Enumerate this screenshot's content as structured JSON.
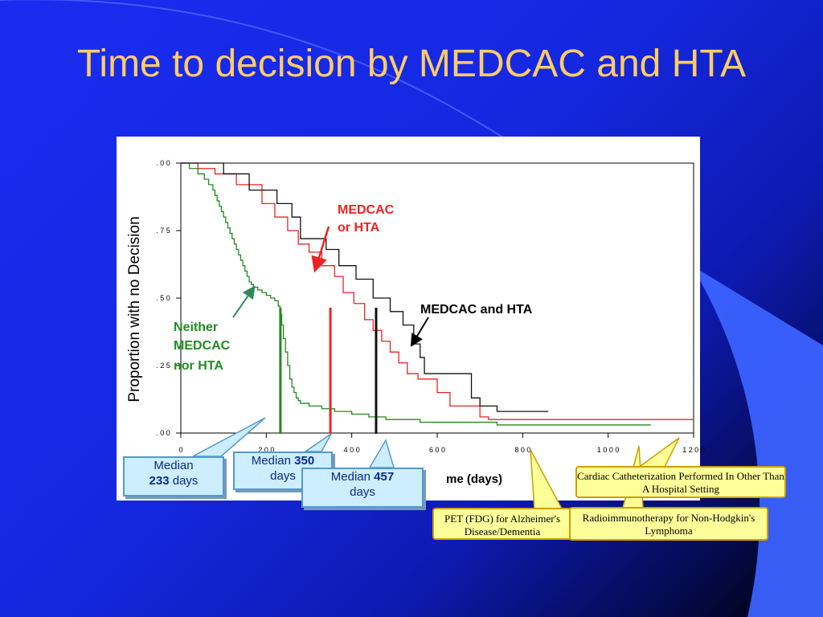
{
  "slide": {
    "title": "Time to decision by MEDCAC and HTA"
  },
  "chart_data": {
    "type": "line",
    "subtype": "step",
    "ylabel": "Proportion with no Decision",
    "xlabel": "me (days)",
    "xlim": [
      0,
      1200
    ],
    "ylim": [
      0,
      1
    ],
    "x_ticks": [
      0,
      200,
      400,
      600,
      800,
      1000,
      1200
    ],
    "x_tick_labels": [
      "0",
      "200",
      "400",
      "600",
      "800",
      "1000",
      "1200"
    ],
    "y_ticks": [
      0,
      0.25,
      0.5,
      0.75,
      1.0
    ],
    "y_tick_labels": [
      ". 0 0",
      ". 2 5",
      ". 5 0",
      ". 7 5",
      ". 0 0"
    ],
    "series": [
      {
        "name": "Neither MEDCAC nor HTA",
        "color": "#228b22",
        "x": [
          0,
          20,
          40,
          55,
          65,
          75,
          80,
          85,
          90,
          95,
          100,
          105,
          110,
          115,
          120,
          125,
          130,
          135,
          140,
          145,
          150,
          155,
          160,
          165,
          170,
          180,
          190,
          200,
          210,
          220,
          228,
          232,
          236,
          240,
          245,
          250,
          255,
          260,
          265,
          270,
          275,
          280,
          300,
          330,
          360,
          400,
          440,
          480,
          560,
          740,
          1100
        ],
        "y": [
          1.0,
          0.98,
          0.96,
          0.94,
          0.92,
          0.9,
          0.88,
          0.86,
          0.84,
          0.82,
          0.8,
          0.78,
          0.76,
          0.74,
          0.72,
          0.7,
          0.68,
          0.66,
          0.64,
          0.62,
          0.6,
          0.58,
          0.56,
          0.55,
          0.54,
          0.53,
          0.52,
          0.51,
          0.5,
          0.49,
          0.47,
          0.44,
          0.4,
          0.35,
          0.3,
          0.25,
          0.2,
          0.17,
          0.15,
          0.13,
          0.12,
          0.11,
          0.1,
          0.09,
          0.08,
          0.07,
          0.06,
          0.05,
          0.04,
          0.03,
          0.03
        ]
      },
      {
        "name": "MEDCAC or HTA",
        "color": "#ee2222",
        "x": [
          0,
          40,
          80,
          130,
          190,
          220,
          250,
          275,
          300,
          330,
          360,
          380,
          405,
          430,
          450,
          470,
          490,
          510,
          530,
          555,
          600,
          630,
          700,
          720,
          1200
        ],
        "y": [
          1.0,
          0.98,
          0.96,
          0.92,
          0.85,
          0.8,
          0.75,
          0.7,
          0.67,
          0.62,
          0.58,
          0.52,
          0.48,
          0.42,
          0.38,
          0.34,
          0.3,
          0.26,
          0.22,
          0.2,
          0.15,
          0.1,
          0.06,
          0.05,
          0.05
        ]
      },
      {
        "name": "MEDCAC and HTA",
        "color": "#111111",
        "x": [
          0,
          100,
          160,
          225,
          260,
          280,
          340,
          370,
          410,
          450,
          490,
          520,
          545,
          560,
          570,
          600,
          680,
          700,
          740,
          860
        ],
        "y": [
          1.0,
          0.96,
          0.9,
          0.85,
          0.8,
          0.72,
          0.68,
          0.62,
          0.57,
          0.5,
          0.45,
          0.4,
          0.33,
          0.28,
          0.22,
          0.22,
          0.13,
          0.1,
          0.08,
          0.08
        ]
      }
    ],
    "median_lines": [
      {
        "x": 233,
        "color": "#228b22"
      },
      {
        "x": 350,
        "color": "#ee2222"
      },
      {
        "x": 457,
        "color": "#111111"
      }
    ]
  },
  "labels": {
    "medcac_or_hta": [
      "MEDCAC",
      "or HTA"
    ],
    "medcac_and_hta": "MEDCAC and HTA",
    "neither": [
      "Neither",
      "MEDCAC",
      "nor HTA"
    ]
  },
  "median_callouts": [
    {
      "pre": "Median",
      "value": "233",
      "post": "days"
    },
    {
      "pre": "Median",
      "value": "350",
      "post": "days"
    },
    {
      "pre": "Median",
      "value": "457",
      "post": "days"
    }
  ],
  "topic_callouts": [
    {
      "text": "Cardiac Catheterization Performed In Other Than A Hospital Setting"
    },
    {
      "text": "PET (FDG) for Alzheimer's Disease/Dementia"
    },
    {
      "text": "Radioimmunotherapy for Non-Hodgkin's Lymphoma"
    }
  ]
}
